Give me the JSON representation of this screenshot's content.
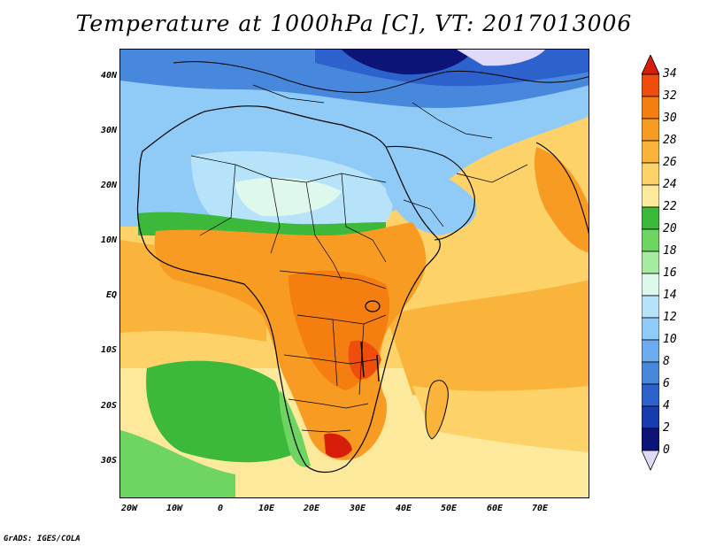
{
  "title": "Temperature at 1000hPa [C], VT: 2017013006",
  "footer": "GrADS: IGES/COLA",
  "map": {
    "lat_ticks": [
      "40N",
      "30N",
      "20N",
      "10N",
      "EQ",
      "10S",
      "20S",
      "30S"
    ],
    "lon_ticks": [
      "20W",
      "10W",
      "0",
      "10E",
      "20E",
      "30E",
      "40E",
      "50E",
      "60E",
      "70E"
    ]
  },
  "colorbar": {
    "levels": [
      "34",
      "32",
      "30",
      "28",
      "26",
      "24",
      "22",
      "20",
      "18",
      "16",
      "14",
      "12",
      "10",
      "8",
      "6",
      "4",
      "2",
      "0"
    ],
    "colors": [
      "#d71e0a",
      "#ef4d0c",
      "#f57e10",
      "#f89b22",
      "#fbb43b",
      "#fdd269",
      "#fde99b",
      "#3cb83a",
      "#6fd562",
      "#a7ebA0",
      "#dff8ec",
      "#b6e3fa",
      "#8fcbf6",
      "#6aacee",
      "#4788dd",
      "#2d62cc",
      "#193bb0",
      "#0d1477",
      "#e0d9f7"
    ]
  }
}
